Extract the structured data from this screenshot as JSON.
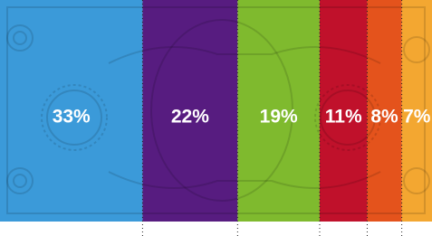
{
  "chart_data": {
    "type": "bar",
    "orientation": "horizontal",
    "stacked": true,
    "values": [
      33,
      22,
      19,
      11,
      8,
      7
    ],
    "value_labels": [
      "33%",
      "22%",
      "19%",
      "11%",
      "8%",
      "7%"
    ],
    "colors": [
      "#3b9ad9",
      "#571c80",
      "#7fba2e",
      "#c0112b",
      "#e4531c",
      "#f3a731"
    ],
    "xlim": [
      0,
      100
    ]
  }
}
